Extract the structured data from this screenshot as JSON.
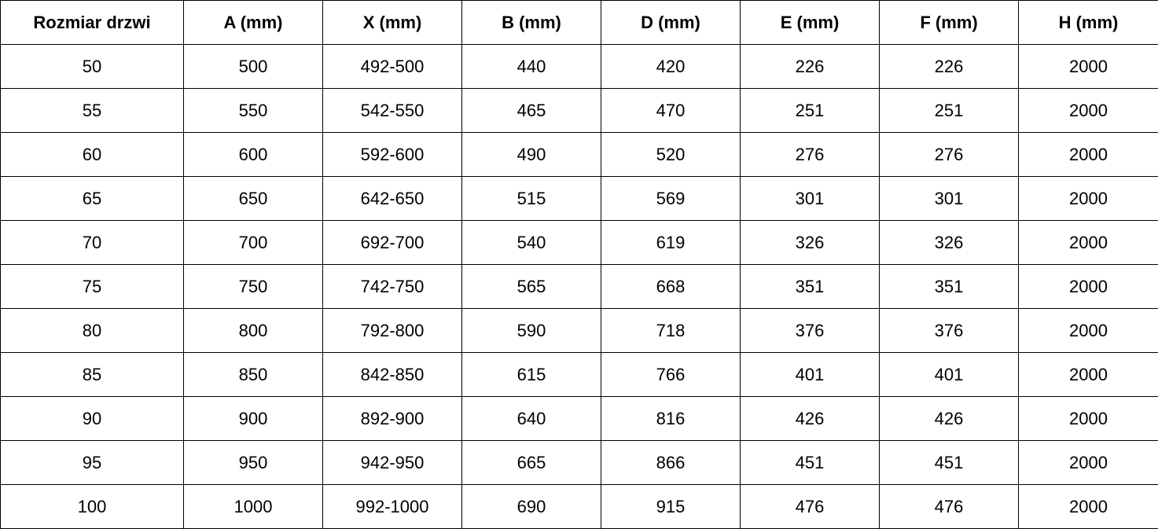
{
  "table": {
    "headers": [
      "Rozmiar drzwi",
      "A (mm)",
      "X (mm)",
      "B (mm)",
      "D (mm)",
      "E (mm)",
      "F (mm)",
      "H (mm)"
    ],
    "rows": [
      [
        "50",
        "500",
        "492-500",
        "440",
        "420",
        "226",
        "226",
        "2000"
      ],
      [
        "55",
        "550",
        "542-550",
        "465",
        "470",
        "251",
        "251",
        "2000"
      ],
      [
        "60",
        "600",
        "592-600",
        "490",
        "520",
        "276",
        "276",
        "2000"
      ],
      [
        "65",
        "650",
        "642-650",
        "515",
        "569",
        "301",
        "301",
        "2000"
      ],
      [
        "70",
        "700",
        "692-700",
        "540",
        "619",
        "326",
        "326",
        "2000"
      ],
      [
        "75",
        "750",
        "742-750",
        "565",
        "668",
        "351",
        "351",
        "2000"
      ],
      [
        "80",
        "800",
        "792-800",
        "590",
        "718",
        "376",
        "376",
        "2000"
      ],
      [
        "85",
        "850",
        "842-850",
        "615",
        "766",
        "401",
        "401",
        "2000"
      ],
      [
        "90",
        "900",
        "892-900",
        "640",
        "816",
        "426",
        "426",
        "2000"
      ],
      [
        "95",
        "950",
        "942-950",
        "665",
        "866",
        "451",
        "451",
        "2000"
      ],
      [
        "100",
        "1000",
        "992-1000",
        "690",
        "915",
        "476",
        "476",
        "2000"
      ]
    ]
  }
}
